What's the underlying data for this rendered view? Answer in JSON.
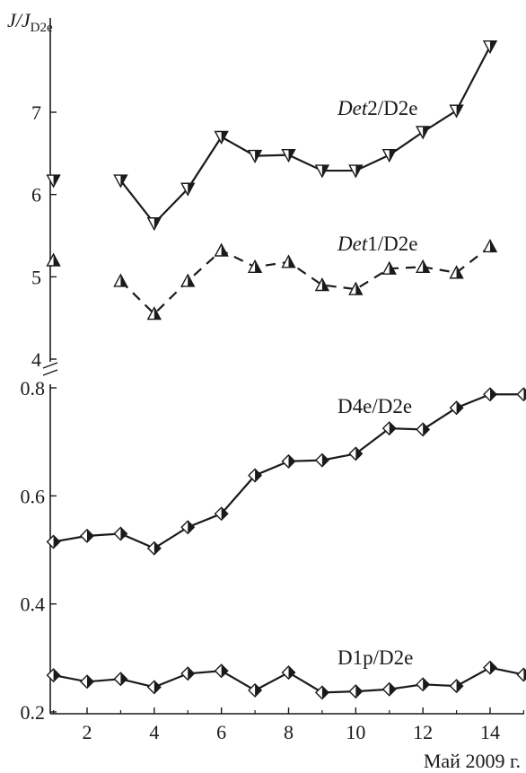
{
  "chart_data": {
    "type": "line",
    "ylabel_main": "J/J",
    "ylabel_sub": "D2e",
    "xlabel": "Май 2009 г.",
    "xlim": [
      0.8,
      15
    ],
    "x_ticks": [
      2,
      4,
      6,
      8,
      10,
      12,
      14
    ],
    "upper_panel": {
      "ylim": [
        3.9,
        8.3
      ],
      "y_ticks": [
        4,
        5,
        6,
        7
      ]
    },
    "lower_panel": {
      "ylim": [
        0.2,
        0.81
      ],
      "y_ticks": [
        0.2,
        0.4,
        0.6,
        0.8
      ]
    },
    "series": [
      {
        "name_italic": "Det",
        "name_rest": "2/D2e",
        "panel": "upper",
        "marker": "triangle-down",
        "dash": "solid",
        "segments": [
          {
            "x": [
              1
            ],
            "y": [
              6.17
            ]
          },
          {
            "x": [
              3,
              4,
              5,
              6,
              7,
              8,
              9,
              10,
              11,
              12,
              13,
              14
            ],
            "y": [
              6.17,
              5.65,
              6.07,
              6.7,
              6.47,
              6.48,
              6.29,
              6.29,
              6.48,
              6.76,
              7.02,
              7.8
            ]
          }
        ]
      },
      {
        "name_italic": "Det",
        "name_rest": "1/D2e",
        "panel": "upper",
        "marker": "triangle-up",
        "dash": "dashed",
        "segments": [
          {
            "x": [
              1
            ],
            "y": [
              5.2
            ]
          },
          {
            "x": [
              3,
              4,
              5,
              6,
              7,
              8,
              9,
              10,
              11,
              12,
              13,
              14
            ],
            "y": [
              4.95,
              4.55,
              4.95,
              5.32,
              5.12,
              5.18,
              4.9,
              4.85,
              5.1,
              5.12,
              5.05,
              5.37
            ]
          }
        ]
      },
      {
        "name_italic": "",
        "name_rest": "D4e/D2e",
        "panel": "lower",
        "marker": "diamond",
        "dash": "solid",
        "segments": [
          {
            "x": [
              1,
              2,
              3,
              4,
              5,
              6,
              7,
              8,
              9,
              10,
              11,
              12,
              13,
              14,
              15
            ],
            "y": [
              0.515,
              0.526,
              0.53,
              0.503,
              0.542,
              0.567,
              0.638,
              0.664,
              0.666,
              0.678,
              0.725,
              0.723,
              0.763,
              0.788,
              0.788
            ]
          }
        ]
      },
      {
        "name_italic": "",
        "name_rest": "D1p/D2e",
        "panel": "lower",
        "marker": "diamond",
        "dash": "solid",
        "segments": [
          {
            "x": [
              1,
              2,
              3,
              4,
              5,
              6,
              7,
              8,
              9,
              10,
              11,
              12,
              13,
              14,
              15
            ],
            "y": [
              0.268,
              0.256,
              0.261,
              0.246,
              0.271,
              0.276,
              0.24,
              0.273,
              0.236,
              0.238,
              0.242,
              0.251,
              0.248,
              0.282,
              0.269
            ]
          }
        ]
      }
    ],
    "grid": false,
    "legend": "none"
  }
}
